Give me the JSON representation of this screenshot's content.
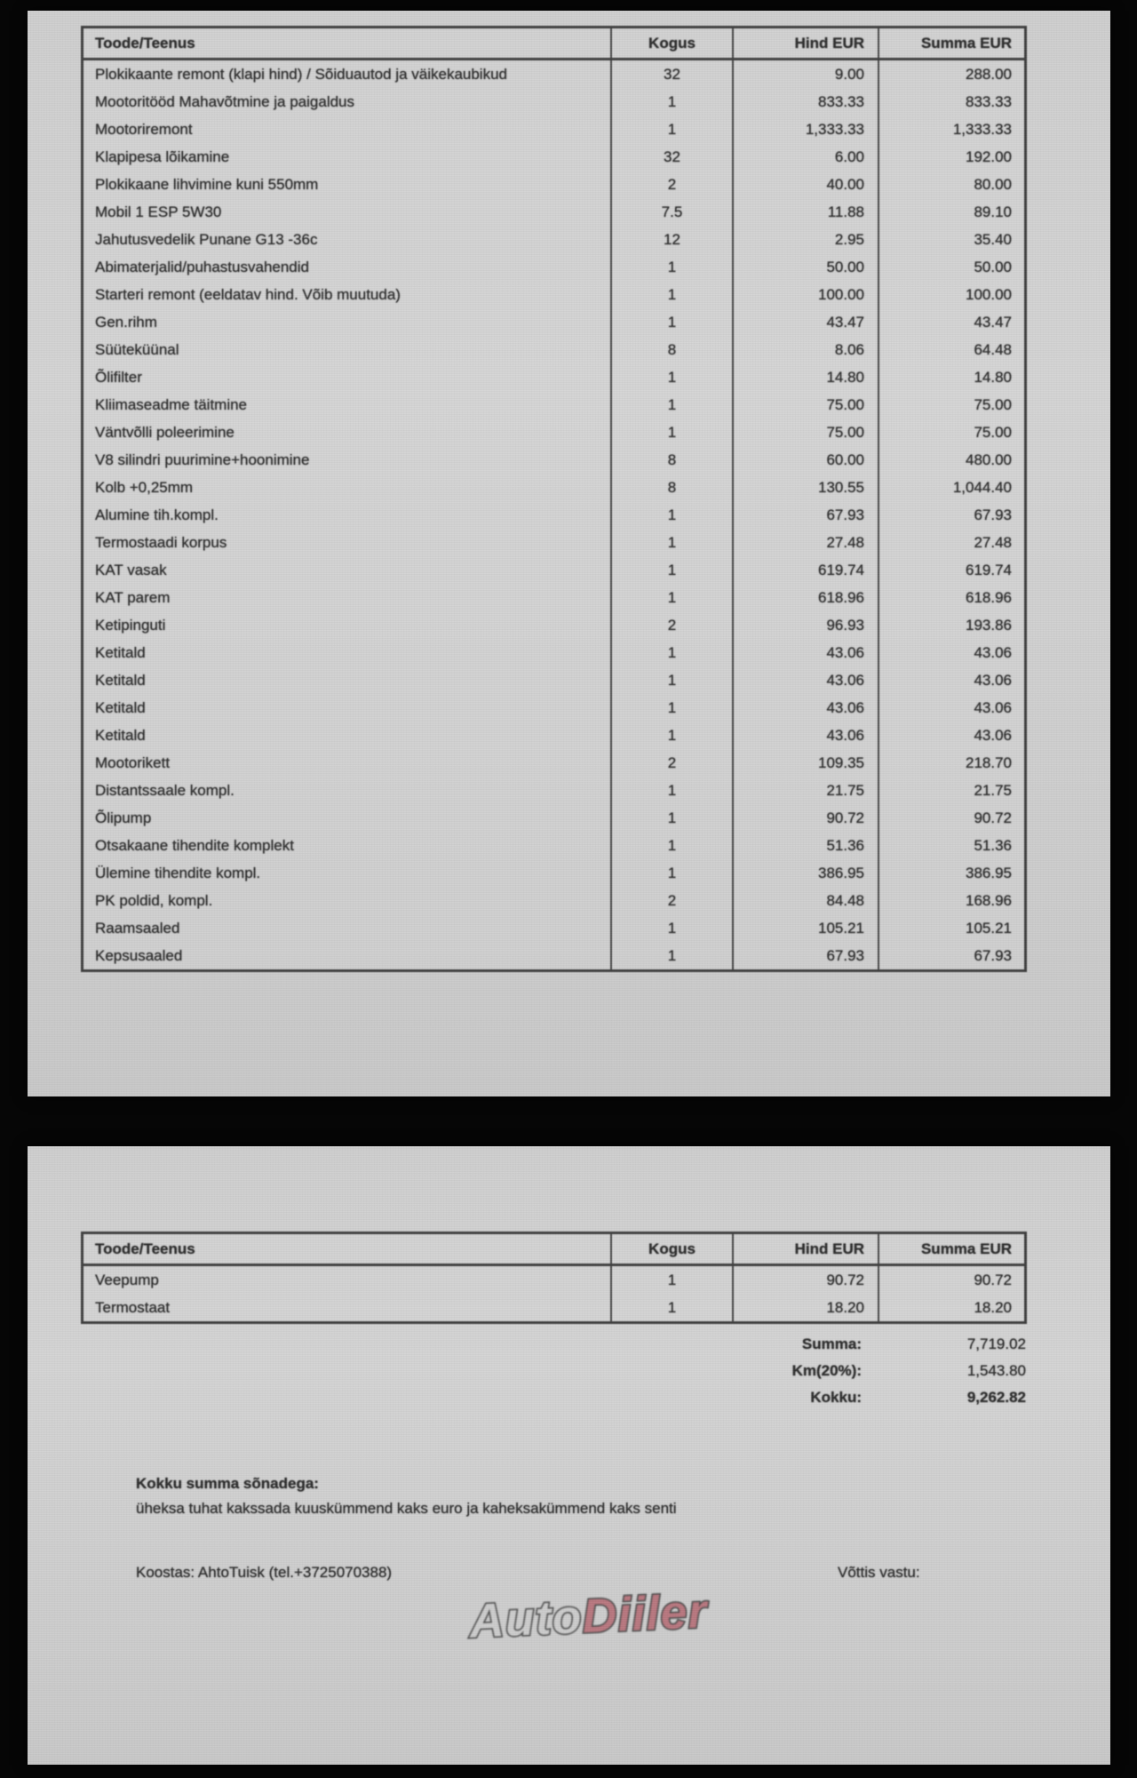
{
  "colors": {
    "logo_auto": "#cdcdcd",
    "logo_diiler": "#b97880",
    "page_bg": "#d2d2d2",
    "background": "#060606",
    "ink": "#2e2e2e"
  },
  "page1": {
    "table": {
      "headers": [
        "Toode/Teenus",
        "Kogus",
        "Hind EUR",
        "Summa EUR"
      ],
      "rows": [
        {
          "name": "Plokikaante remont (klapi hind) / Sõiduautod ja väikekaubikud",
          "qty": "32",
          "price": "9.00",
          "sum": "288.00"
        },
        {
          "name": "Mootoritööd Mahavõtmine ja paigaldus",
          "qty": "1",
          "price": "833.33",
          "sum": "833.33"
        },
        {
          "name": "Mootoriremont",
          "qty": "1",
          "price": "1,333.33",
          "sum": "1,333.33"
        },
        {
          "name": "Klapipesa lõikamine",
          "qty": "32",
          "price": "6.00",
          "sum": "192.00"
        },
        {
          "name": "Plokikaane lihvimine kuni 550mm",
          "qty": "2",
          "price": "40.00",
          "sum": "80.00"
        },
        {
          "name": "Mobil 1 ESP 5W30",
          "qty": "7.5",
          "price": "11.88",
          "sum": "89.10"
        },
        {
          "name": "Jahutusvedelik Punane G13 -36c",
          "qty": "12",
          "price": "2.95",
          "sum": "35.40"
        },
        {
          "name": "Abimaterjalid/puhastusvahendid",
          "qty": "1",
          "price": "50.00",
          "sum": "50.00"
        },
        {
          "name": "Starteri remont (eeldatav hind. Võib muutuda)",
          "qty": "1",
          "price": "100.00",
          "sum": "100.00"
        },
        {
          "name": "Gen.rihm",
          "qty": "1",
          "price": "43.47",
          "sum": "43.47"
        },
        {
          "name": "Süüteküünal",
          "qty": "8",
          "price": "8.06",
          "sum": "64.48"
        },
        {
          "name": "Õlifilter",
          "qty": "1",
          "price": "14.80",
          "sum": "14.80"
        },
        {
          "name": "Kliimaseadme täitmine",
          "qty": "1",
          "price": "75.00",
          "sum": "75.00"
        },
        {
          "name": "Väntvõlli poleerimine",
          "qty": "1",
          "price": "75.00",
          "sum": "75.00"
        },
        {
          "name": "V8 silindri puurimine+hoonimine",
          "qty": "8",
          "price": "60.00",
          "sum": "480.00"
        },
        {
          "name": "Kolb +0,25mm",
          "qty": "8",
          "price": "130.55",
          "sum": "1,044.40"
        },
        {
          "name": "Alumine tih.kompl.",
          "qty": "1",
          "price": "67.93",
          "sum": "67.93"
        },
        {
          "name": "Termostaadi korpus",
          "qty": "1",
          "price": "27.48",
          "sum": "27.48"
        },
        {
          "name": "KAT vasak",
          "qty": "1",
          "price": "619.74",
          "sum": "619.74"
        },
        {
          "name": "KAT parem",
          "qty": "1",
          "price": "618.96",
          "sum": "618.96"
        },
        {
          "name": "Ketipinguti",
          "qty": "2",
          "price": "96.93",
          "sum": "193.86"
        },
        {
          "name": "Ketitald",
          "qty": "1",
          "price": "43.06",
          "sum": "43.06"
        },
        {
          "name": "Ketitald",
          "qty": "1",
          "price": "43.06",
          "sum": "43.06"
        },
        {
          "name": "Ketitald",
          "qty": "1",
          "price": "43.06",
          "sum": "43.06"
        },
        {
          "name": "Ketitald",
          "qty": "1",
          "price": "43.06",
          "sum": "43.06"
        },
        {
          "name": "Mootorikett",
          "qty": "2",
          "price": "109.35",
          "sum": "218.70"
        },
        {
          "name": "Distantssaale kompl.",
          "qty": "1",
          "price": "21.75",
          "sum": "21.75"
        },
        {
          "name": "Õlipump",
          "qty": "1",
          "price": "90.72",
          "sum": "90.72"
        },
        {
          "name": "Otsakaane tihendite komplekt",
          "qty": "1",
          "price": "51.36",
          "sum": "51.36"
        },
        {
          "name": "Ülemine tihendite kompl.",
          "qty": "1",
          "price": "386.95",
          "sum": "386.95"
        },
        {
          "name": "PK poldid, kompl.",
          "qty": "2",
          "price": "84.48",
          "sum": "168.96"
        },
        {
          "name": "Raamsaaled",
          "qty": "1",
          "price": "105.21",
          "sum": "105.21"
        },
        {
          "name": "Kepsusaaled",
          "qty": "1",
          "price": "67.93",
          "sum": "67.93"
        }
      ]
    }
  },
  "page2": {
    "table": {
      "headers": [
        "Toode/Teenus",
        "Kogus",
        "Hind EUR",
        "Summa EUR"
      ],
      "rows": [
        {
          "name": "Veepump",
          "qty": "1",
          "price": "90.72",
          "sum": "90.72"
        },
        {
          "name": "Termostaat",
          "qty": "1",
          "price": "18.20",
          "sum": "18.20"
        }
      ]
    },
    "totals": [
      {
        "label": "Summa:",
        "value": "7,719.02"
      },
      {
        "label": "Km(20%):",
        "value": "1,543.80"
      },
      {
        "label": "Kokku:",
        "value": "9,262.82"
      }
    ],
    "amount_in_words": {
      "label": "Kokku summa sõnadega:",
      "text": "üheksa tuhat kakssada kuuskümmend kaks euro ja kaheksakümmend kaks senti"
    },
    "prepared_by": "Koostas: AhtoTuisk (tel.+3725070388)",
    "received_by": "Võttis vastu:",
    "watermark": {
      "part1": "Auto",
      "part2": "Diiler"
    }
  }
}
